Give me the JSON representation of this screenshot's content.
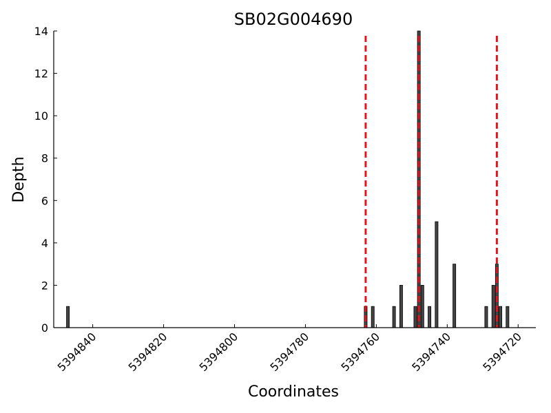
{
  "chart_data": {
    "type": "bar",
    "title": "SB02G004690",
    "xlabel": "Coordinates",
    "ylabel": "Depth",
    "x_reversed": true,
    "xlim": [
      5394851,
      5394715
    ],
    "ylim": [
      0,
      14
    ],
    "yticks": [
      0,
      2,
      4,
      6,
      8,
      10,
      12,
      14
    ],
    "xticks": [
      5394840,
      5394820,
      5394800,
      5394780,
      5394760,
      5394740,
      5394720
    ],
    "grid": false,
    "bar_color": "#444444",
    "bars": [
      {
        "x": 5394847,
        "y": 1
      },
      {
        "x": 5394763,
        "y": 1
      },
      {
        "x": 5394761,
        "y": 1
      },
      {
        "x": 5394755,
        "y": 1
      },
      {
        "x": 5394753,
        "y": 2
      },
      {
        "x": 5394749,
        "y": 1
      },
      {
        "x": 5394748,
        "y": 14
      },
      {
        "x": 5394747,
        "y": 2
      },
      {
        "x": 5394745,
        "y": 1
      },
      {
        "x": 5394743,
        "y": 5
      },
      {
        "x": 5394738,
        "y": 3
      },
      {
        "x": 5394729,
        "y": 1
      },
      {
        "x": 5394727,
        "y": 2
      },
      {
        "x": 5394726,
        "y": 3
      },
      {
        "x": 5394725,
        "y": 1
      },
      {
        "x": 5394723,
        "y": 1
      }
    ],
    "reference_lines": {
      "color": "#e8141b",
      "style": "dashed",
      "x": [
        5394763,
        5394748,
        5394726
      ]
    }
  }
}
